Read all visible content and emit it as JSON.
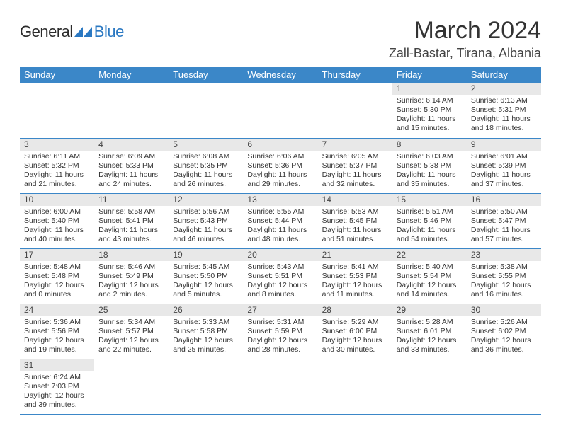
{
  "logo": {
    "part1": "General",
    "part2": "Blue"
  },
  "title": "March 2024",
  "location": "Zall-Bastar, Tirana, Albania",
  "colors": {
    "headerBg": "#3b87c8",
    "dayStripe": "#e8e8e8",
    "rule": "#3b87c8",
    "logoBlue": "#2a78c2"
  },
  "dayHeaders": [
    "Sunday",
    "Monday",
    "Tuesday",
    "Wednesday",
    "Thursday",
    "Friday",
    "Saturday"
  ],
  "weeks": [
    [
      null,
      null,
      null,
      null,
      null,
      {
        "d": "1",
        "sr": "Sunrise: 6:14 AM",
        "ss": "Sunset: 5:30 PM",
        "dl": "Daylight: 11 hours and 15 minutes."
      },
      {
        "d": "2",
        "sr": "Sunrise: 6:13 AM",
        "ss": "Sunset: 5:31 PM",
        "dl": "Daylight: 11 hours and 18 minutes."
      }
    ],
    [
      {
        "d": "3",
        "sr": "Sunrise: 6:11 AM",
        "ss": "Sunset: 5:32 PM",
        "dl": "Daylight: 11 hours and 21 minutes."
      },
      {
        "d": "4",
        "sr": "Sunrise: 6:09 AM",
        "ss": "Sunset: 5:33 PM",
        "dl": "Daylight: 11 hours and 24 minutes."
      },
      {
        "d": "5",
        "sr": "Sunrise: 6:08 AM",
        "ss": "Sunset: 5:35 PM",
        "dl": "Daylight: 11 hours and 26 minutes."
      },
      {
        "d": "6",
        "sr": "Sunrise: 6:06 AM",
        "ss": "Sunset: 5:36 PM",
        "dl": "Daylight: 11 hours and 29 minutes."
      },
      {
        "d": "7",
        "sr": "Sunrise: 6:05 AM",
        "ss": "Sunset: 5:37 PM",
        "dl": "Daylight: 11 hours and 32 minutes."
      },
      {
        "d": "8",
        "sr": "Sunrise: 6:03 AM",
        "ss": "Sunset: 5:38 PM",
        "dl": "Daylight: 11 hours and 35 minutes."
      },
      {
        "d": "9",
        "sr": "Sunrise: 6:01 AM",
        "ss": "Sunset: 5:39 PM",
        "dl": "Daylight: 11 hours and 37 minutes."
      }
    ],
    [
      {
        "d": "10",
        "sr": "Sunrise: 6:00 AM",
        "ss": "Sunset: 5:40 PM",
        "dl": "Daylight: 11 hours and 40 minutes."
      },
      {
        "d": "11",
        "sr": "Sunrise: 5:58 AM",
        "ss": "Sunset: 5:41 PM",
        "dl": "Daylight: 11 hours and 43 minutes."
      },
      {
        "d": "12",
        "sr": "Sunrise: 5:56 AM",
        "ss": "Sunset: 5:43 PM",
        "dl": "Daylight: 11 hours and 46 minutes."
      },
      {
        "d": "13",
        "sr": "Sunrise: 5:55 AM",
        "ss": "Sunset: 5:44 PM",
        "dl": "Daylight: 11 hours and 48 minutes."
      },
      {
        "d": "14",
        "sr": "Sunrise: 5:53 AM",
        "ss": "Sunset: 5:45 PM",
        "dl": "Daylight: 11 hours and 51 minutes."
      },
      {
        "d": "15",
        "sr": "Sunrise: 5:51 AM",
        "ss": "Sunset: 5:46 PM",
        "dl": "Daylight: 11 hours and 54 minutes."
      },
      {
        "d": "16",
        "sr": "Sunrise: 5:50 AM",
        "ss": "Sunset: 5:47 PM",
        "dl": "Daylight: 11 hours and 57 minutes."
      }
    ],
    [
      {
        "d": "17",
        "sr": "Sunrise: 5:48 AM",
        "ss": "Sunset: 5:48 PM",
        "dl": "Daylight: 12 hours and 0 minutes."
      },
      {
        "d": "18",
        "sr": "Sunrise: 5:46 AM",
        "ss": "Sunset: 5:49 PM",
        "dl": "Daylight: 12 hours and 2 minutes."
      },
      {
        "d": "19",
        "sr": "Sunrise: 5:45 AM",
        "ss": "Sunset: 5:50 PM",
        "dl": "Daylight: 12 hours and 5 minutes."
      },
      {
        "d": "20",
        "sr": "Sunrise: 5:43 AM",
        "ss": "Sunset: 5:51 PM",
        "dl": "Daylight: 12 hours and 8 minutes."
      },
      {
        "d": "21",
        "sr": "Sunrise: 5:41 AM",
        "ss": "Sunset: 5:53 PM",
        "dl": "Daylight: 12 hours and 11 minutes."
      },
      {
        "d": "22",
        "sr": "Sunrise: 5:40 AM",
        "ss": "Sunset: 5:54 PM",
        "dl": "Daylight: 12 hours and 14 minutes."
      },
      {
        "d": "23",
        "sr": "Sunrise: 5:38 AM",
        "ss": "Sunset: 5:55 PM",
        "dl": "Daylight: 12 hours and 16 minutes."
      }
    ],
    [
      {
        "d": "24",
        "sr": "Sunrise: 5:36 AM",
        "ss": "Sunset: 5:56 PM",
        "dl": "Daylight: 12 hours and 19 minutes."
      },
      {
        "d": "25",
        "sr": "Sunrise: 5:34 AM",
        "ss": "Sunset: 5:57 PM",
        "dl": "Daylight: 12 hours and 22 minutes."
      },
      {
        "d": "26",
        "sr": "Sunrise: 5:33 AM",
        "ss": "Sunset: 5:58 PM",
        "dl": "Daylight: 12 hours and 25 minutes."
      },
      {
        "d": "27",
        "sr": "Sunrise: 5:31 AM",
        "ss": "Sunset: 5:59 PM",
        "dl": "Daylight: 12 hours and 28 minutes."
      },
      {
        "d": "28",
        "sr": "Sunrise: 5:29 AM",
        "ss": "Sunset: 6:00 PM",
        "dl": "Daylight: 12 hours and 30 minutes."
      },
      {
        "d": "29",
        "sr": "Sunrise: 5:28 AM",
        "ss": "Sunset: 6:01 PM",
        "dl": "Daylight: 12 hours and 33 minutes."
      },
      {
        "d": "30",
        "sr": "Sunrise: 5:26 AM",
        "ss": "Sunset: 6:02 PM",
        "dl": "Daylight: 12 hours and 36 minutes."
      }
    ],
    [
      {
        "d": "31",
        "sr": "Sunrise: 6:24 AM",
        "ss": "Sunset: 7:03 PM",
        "dl": "Daylight: 12 hours and 39 minutes."
      },
      null,
      null,
      null,
      null,
      null,
      null
    ]
  ]
}
